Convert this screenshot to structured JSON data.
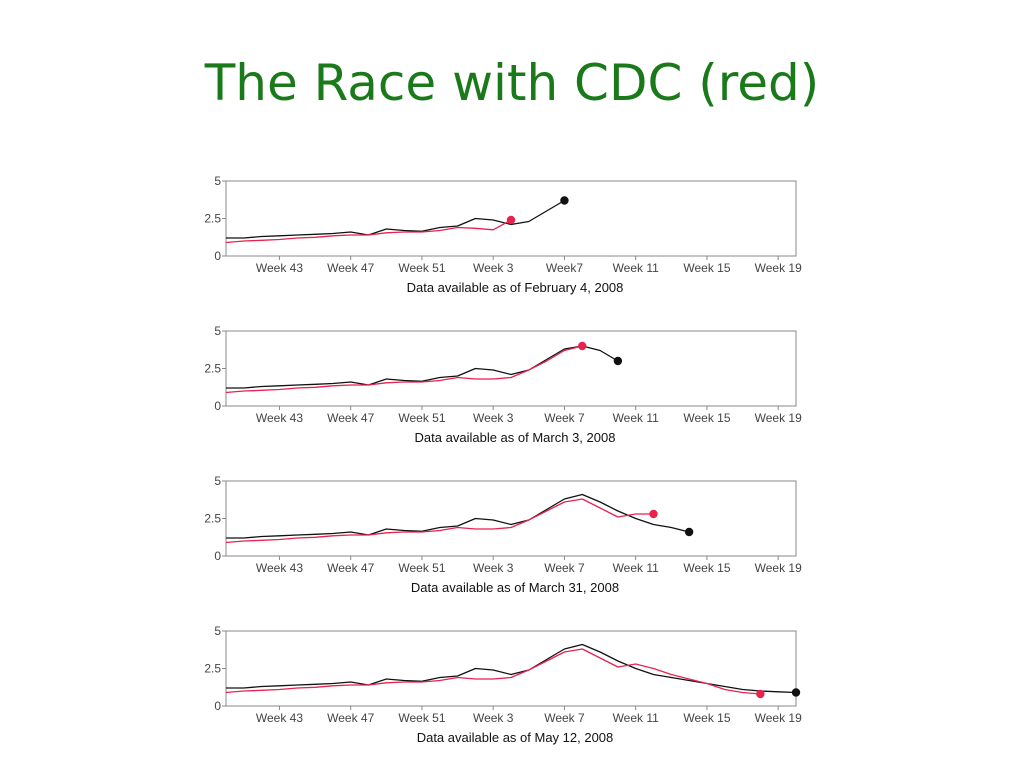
{
  "slide": {
    "title": "The Race with CDC (red)",
    "title_color": "#1a7a1a"
  },
  "colors": {
    "google": "#111111",
    "cdc": "#e8224f",
    "axis": "#888888"
  },
  "chart_data": [
    {
      "type": "line",
      "caption": "Data available as of February 4, 2008",
      "x_tick_labels": [
        "Week 43",
        "Week 47",
        "Week 51",
        "Week 3",
        "Week7",
        "Week 11",
        "Week 15",
        "Week 19"
      ],
      "x_tick_positions": [
        43,
        47,
        51,
        55,
        59,
        63,
        67,
        71
      ],
      "y_tick_labels": [
        "0",
        "2.5",
        "5"
      ],
      "ylim": [
        0,
        5
      ],
      "xlim": [
        40,
        72
      ],
      "series": [
        {
          "x": [
            40,
            41,
            42,
            43,
            44,
            45,
            46,
            47,
            48,
            49,
            50,
            51,
            52,
            53,
            54,
            55,
            56,
            57,
            58,
            59
          ],
          "values": [
            1.2,
            1.2,
            1.3,
            1.35,
            1.4,
            1.45,
            1.5,
            1.6,
            1.4,
            1.8,
            1.7,
            1.65,
            1.9,
            2.0,
            2.5,
            2.4,
            2.1,
            2.3,
            3.0,
            3.7
          ],
          "marker": "end",
          "color_key": "google"
        },
        {
          "x": [
            40,
            41,
            42,
            43,
            44,
            45,
            46,
            47,
            48,
            49,
            50,
            51,
            52,
            53,
            54,
            55,
            56
          ],
          "values": [
            0.9,
            1.0,
            1.05,
            1.1,
            1.2,
            1.25,
            1.35,
            1.4,
            1.4,
            1.55,
            1.6,
            1.6,
            1.7,
            1.9,
            1.85,
            1.75,
            2.4
          ],
          "marker": "end",
          "color_key": "cdc"
        }
      ]
    },
    {
      "type": "line",
      "caption": "Data available as of March 3, 2008",
      "x_tick_labels": [
        "Week 43",
        "Week 47",
        "Week 51",
        "Week 3",
        "Week 7",
        "Week 11",
        "Week 15",
        "Week 19"
      ],
      "x_tick_positions": [
        43,
        47,
        51,
        55,
        59,
        63,
        67,
        71
      ],
      "y_tick_labels": [
        "0",
        "2.5",
        "5"
      ],
      "ylim": [
        0,
        5
      ],
      "xlim": [
        40,
        72
      ],
      "series": [
        {
          "x": [
            40,
            41,
            42,
            43,
            44,
            45,
            46,
            47,
            48,
            49,
            50,
            51,
            52,
            53,
            54,
            55,
            56,
            57,
            58,
            59,
            60,
            61,
            62
          ],
          "values": [
            1.2,
            1.2,
            1.3,
            1.35,
            1.4,
            1.45,
            1.5,
            1.6,
            1.4,
            1.8,
            1.7,
            1.65,
            1.9,
            2.0,
            2.5,
            2.4,
            2.1,
            2.4,
            3.1,
            3.8,
            4.0,
            3.7,
            3.0
          ],
          "marker": "end",
          "color_key": "google"
        },
        {
          "x": [
            40,
            41,
            42,
            43,
            44,
            45,
            46,
            47,
            48,
            49,
            50,
            51,
            52,
            53,
            54,
            55,
            56,
            57,
            58,
            59,
            60
          ],
          "values": [
            0.9,
            1.0,
            1.05,
            1.1,
            1.2,
            1.25,
            1.35,
            1.4,
            1.4,
            1.55,
            1.6,
            1.6,
            1.7,
            1.9,
            1.8,
            1.8,
            1.9,
            2.4,
            3.0,
            3.7,
            4.0
          ],
          "marker": "end",
          "color_key": "cdc"
        }
      ]
    },
    {
      "type": "line",
      "caption": "Data available as of March 31, 2008",
      "x_tick_labels": [
        "Week 43",
        "Week 47",
        "Week 51",
        "Week 3",
        "Week 7",
        "Week 11",
        "Week 15",
        "Week 19"
      ],
      "x_tick_positions": [
        43,
        47,
        51,
        55,
        59,
        63,
        67,
        71
      ],
      "y_tick_labels": [
        "0",
        "2.5",
        "5"
      ],
      "ylim": [
        0,
        5
      ],
      "xlim": [
        40,
        72
      ],
      "series": [
        {
          "x": [
            40,
            41,
            42,
            43,
            44,
            45,
            46,
            47,
            48,
            49,
            50,
            51,
            52,
            53,
            54,
            55,
            56,
            57,
            58,
            59,
            60,
            61,
            62,
            63,
            64,
            65,
            66
          ],
          "values": [
            1.2,
            1.2,
            1.3,
            1.35,
            1.4,
            1.45,
            1.5,
            1.6,
            1.4,
            1.8,
            1.7,
            1.65,
            1.9,
            2.0,
            2.5,
            2.4,
            2.1,
            2.4,
            3.1,
            3.8,
            4.1,
            3.6,
            3.0,
            2.5,
            2.1,
            1.9,
            1.6
          ],
          "marker": "end",
          "color_key": "google"
        },
        {
          "x": [
            40,
            41,
            42,
            43,
            44,
            45,
            46,
            47,
            48,
            49,
            50,
            51,
            52,
            53,
            54,
            55,
            56,
            57,
            58,
            59,
            60,
            61,
            62,
            63,
            64
          ],
          "values": [
            0.9,
            1.0,
            1.05,
            1.1,
            1.2,
            1.25,
            1.35,
            1.4,
            1.4,
            1.55,
            1.6,
            1.6,
            1.7,
            1.9,
            1.8,
            1.8,
            1.9,
            2.4,
            3.0,
            3.6,
            3.8,
            3.2,
            2.6,
            2.8,
            2.8
          ],
          "marker": "end",
          "color_key": "cdc"
        }
      ]
    },
    {
      "type": "line",
      "caption": "Data available as of May 12, 2008",
      "x_tick_labels": [
        "Week 43",
        "Week 47",
        "Week 51",
        "Week 3",
        "Week 7",
        "Week 11",
        "Week 15",
        "Week 19"
      ],
      "x_tick_positions": [
        43,
        47,
        51,
        55,
        59,
        63,
        67,
        71
      ],
      "y_tick_labels": [
        "0",
        "2.5",
        "5"
      ],
      "ylim": [
        0,
        5
      ],
      "xlim": [
        40,
        72
      ],
      "series": [
        {
          "x": [
            40,
            41,
            42,
            43,
            44,
            45,
            46,
            47,
            48,
            49,
            50,
            51,
            52,
            53,
            54,
            55,
            56,
            57,
            58,
            59,
            60,
            61,
            62,
            63,
            64,
            65,
            66,
            67,
            68,
            69,
            70,
            71,
            72
          ],
          "values": [
            1.2,
            1.2,
            1.3,
            1.35,
            1.4,
            1.45,
            1.5,
            1.6,
            1.4,
            1.8,
            1.7,
            1.65,
            1.9,
            2.0,
            2.5,
            2.4,
            2.1,
            2.4,
            3.1,
            3.8,
            4.1,
            3.6,
            3.0,
            2.5,
            2.1,
            1.9,
            1.7,
            1.5,
            1.3,
            1.1,
            1.0,
            0.95,
            0.9
          ],
          "marker": "end",
          "color_key": "google"
        },
        {
          "x": [
            40,
            41,
            42,
            43,
            44,
            45,
            46,
            47,
            48,
            49,
            50,
            51,
            52,
            53,
            54,
            55,
            56,
            57,
            58,
            59,
            60,
            61,
            62,
            63,
            64,
            65,
            66,
            67,
            68,
            69,
            70
          ],
          "values": [
            0.9,
            1.0,
            1.05,
            1.1,
            1.2,
            1.25,
            1.35,
            1.4,
            1.4,
            1.55,
            1.6,
            1.6,
            1.7,
            1.9,
            1.8,
            1.8,
            1.9,
            2.4,
            3.0,
            3.6,
            3.8,
            3.2,
            2.6,
            2.8,
            2.5,
            2.1,
            1.8,
            1.5,
            1.1,
            0.9,
            0.8
          ],
          "marker": "end",
          "color_key": "cdc"
        }
      ]
    }
  ]
}
